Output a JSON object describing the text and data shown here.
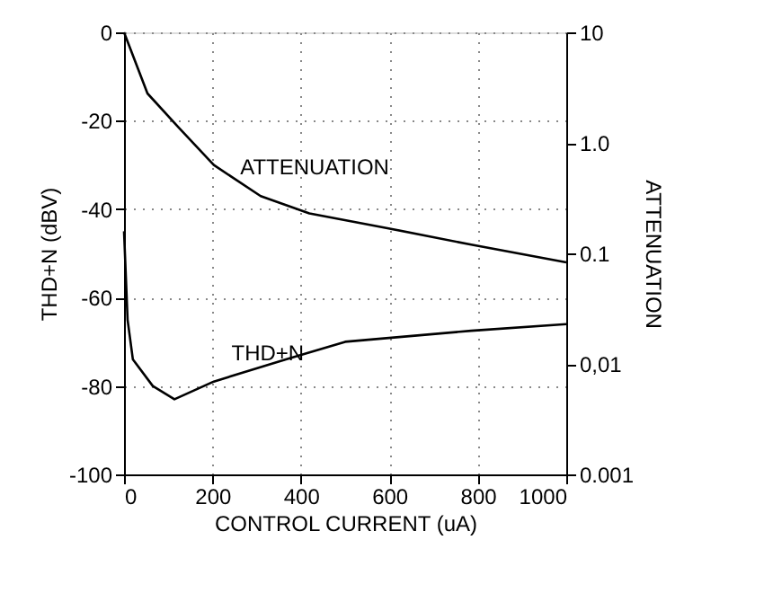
{
  "chart_data": {
    "type": "line",
    "xlabel": "CONTROL CURRENT (uA)",
    "ylabel": "THD+N (dBV)",
    "y2label": "ATTENUATION",
    "xlim": [
      0,
      1000
    ],
    "xticks": [
      0,
      200,
      400,
      600,
      800,
      1000
    ],
    "ylim": [
      -100,
      0
    ],
    "yticks": [
      -100,
      -80,
      -60,
      -40,
      -20,
      0
    ],
    "y2lim": [
      0.001,
      10
    ],
    "y2ticks": [
      {
        "value": 0.001,
        "label": "0.001"
      },
      {
        "value": 0.01,
        "label": "0,01"
      },
      {
        "value": 0.1,
        "label": "0.1"
      },
      {
        "value": 1,
        "label": "1.0"
      },
      10
    ],
    "log": "y2",
    "grid": true,
    "line_style": "solid",
    "marker": "none",
    "series": [
      {
        "name": "ATTENUATION",
        "color": "#000000",
        "axis": "y2",
        "x": [
          0,
          53,
          122,
          203,
          309,
          419,
          593,
          785,
          1000
        ],
        "values": [
          10,
          2.8,
          1.4,
          0.63,
          0.33,
          0.23,
          0.17,
          0.12,
          0.083
        ]
      },
      {
        "name": "THD+N",
        "color": "#000000",
        "x": [
          0,
          8,
          20,
          65,
          114,
          203,
          366,
          500,
          785,
          1000
        ],
        "values": [
          -45,
          -65,
          -74,
          -80,
          -83,
          -79,
          -74,
          -70,
          -67.5,
          -66
        ]
      }
    ]
  }
}
